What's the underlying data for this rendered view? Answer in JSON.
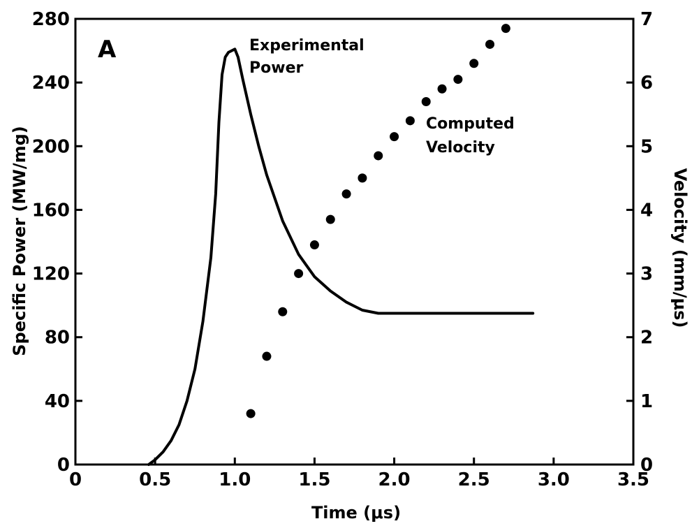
{
  "chart_data": {
    "type": "line",
    "panel_label": "A",
    "xlabel": "Time (μs)",
    "ylabel_left": "Specific Power (MW/mg)",
    "ylabel_right": "Velocity (mm/μs)",
    "xlim": [
      0,
      3.5
    ],
    "ylim_left": [
      0,
      280
    ],
    "ylim_right": [
      0,
      7
    ],
    "x_ticks": [
      0,
      0.5,
      1.0,
      1.5,
      2.0,
      2.5,
      3.0,
      3.5
    ],
    "x_tick_labels": [
      "0",
      "0.5",
      "1.0",
      "1.5",
      "2.0",
      "2.5",
      "3.0",
      "3.5"
    ],
    "y_left_ticks": [
      0,
      40,
      80,
      120,
      160,
      200,
      240,
      280
    ],
    "y_left_tick_labels": [
      "0",
      "40",
      "80",
      "120",
      "160",
      "200",
      "240",
      "280"
    ],
    "y_right_ticks": [
      0,
      1,
      2,
      3,
      4,
      5,
      6,
      7
    ],
    "y_right_tick_labels": [
      "0",
      "1",
      "2",
      "3",
      "4",
      "5",
      "6",
      "7"
    ],
    "grid": false,
    "series": [
      {
        "name": "Experimental Power",
        "style": "solid-line",
        "axis": "left",
        "x": [
          0.46,
          0.5,
          0.55,
          0.6,
          0.65,
          0.7,
          0.75,
          0.8,
          0.85,
          0.88,
          0.9,
          0.92,
          0.94,
          0.96,
          0.98,
          1.0,
          1.02,
          1.05,
          1.1,
          1.15,
          1.2,
          1.3,
          1.4,
          1.5,
          1.6,
          1.7,
          1.8,
          1.9,
          2.0,
          2.2,
          2.5,
          2.87
        ],
        "y": [
          0,
          3,
          8,
          15,
          25,
          40,
          60,
          90,
          130,
          170,
          215,
          245,
          256,
          259,
          260,
          261,
          256,
          242,
          220,
          200,
          182,
          153,
          132,
          118,
          109,
          102,
          97,
          95,
          95,
          95,
          95,
          95
        ]
      },
      {
        "name": "Computed Velocity",
        "style": "dots",
        "axis": "right",
        "x": [
          1.1,
          1.2,
          1.3,
          1.4,
          1.5,
          1.6,
          1.7,
          1.8,
          1.9,
          2.0,
          2.1,
          2.2,
          2.3,
          2.4,
          2.5,
          2.6,
          2.7
        ],
        "y": [
          0.8,
          1.7,
          2.4,
          3.0,
          3.45,
          3.85,
          4.25,
          4.5,
          4.85,
          5.15,
          5.4,
          5.7,
          5.9,
          6.05,
          6.3,
          6.6,
          6.85
        ]
      }
    ],
    "annotations": [
      {
        "lines": [
          "Experimental",
          "Power"
        ]
      },
      {
        "lines": [
          "Computed",
          "Velocity"
        ]
      }
    ]
  }
}
